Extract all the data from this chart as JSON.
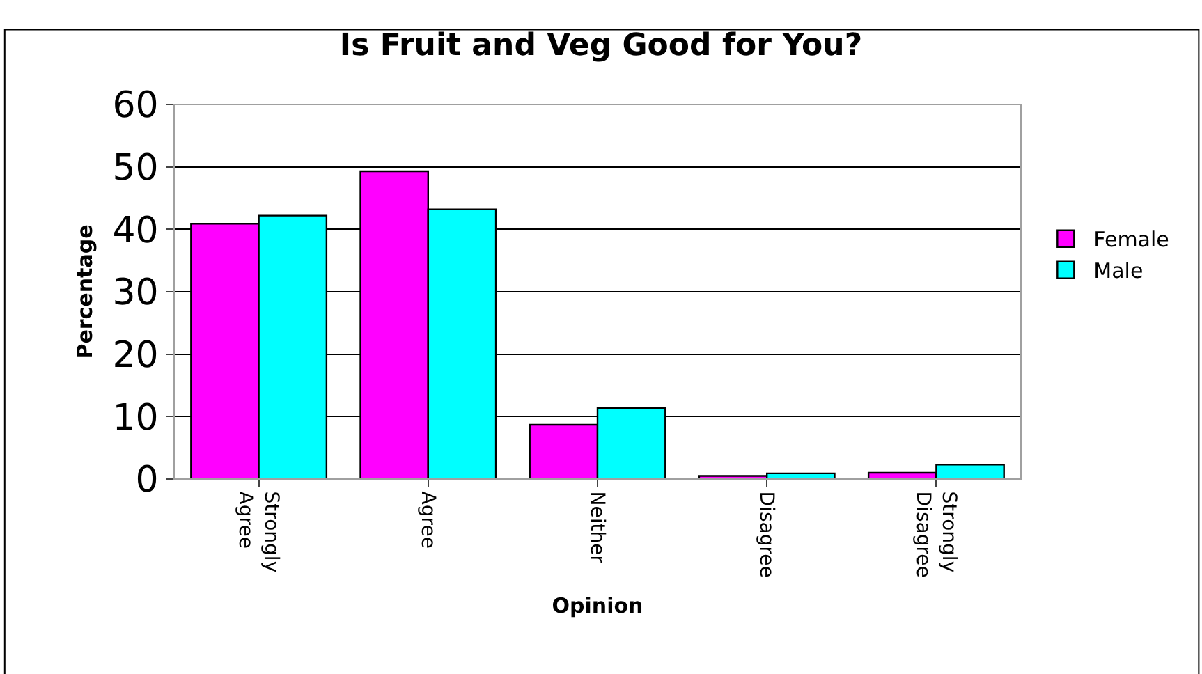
{
  "chart_data": {
    "type": "bar",
    "title": "Is Fruit and Veg Good for You?",
    "xlabel": "Opinion",
    "ylabel": "Percentage",
    "categories": [
      "Strongly Agree",
      "Agree",
      "Neither",
      "Disagree",
      "Strongly Disagree"
    ],
    "series": [
      {
        "name": "Female",
        "color": "#ff00ff",
        "values": [
          40.9,
          49.3,
          8.7,
          0.5,
          1.0
        ]
      },
      {
        "name": "Male",
        "color": "#00ffff",
        "values": [
          42.2,
          43.2,
          11.4,
          0.9,
          2.3
        ]
      }
    ],
    "ylim": [
      0,
      60
    ],
    "yticks": [
      0,
      10,
      20,
      30,
      40,
      50,
      60
    ],
    "grid": "y",
    "legend": "right"
  }
}
